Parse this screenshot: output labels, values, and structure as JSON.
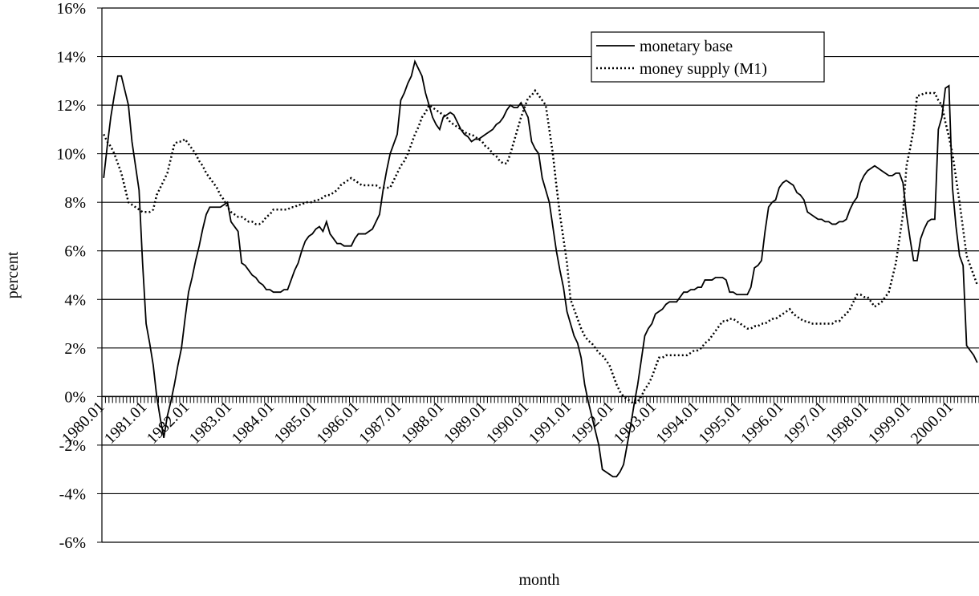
{
  "chart_data": {
    "type": "line",
    "x_label": "month",
    "y_label": "percent",
    "categories": [
      "1980.01",
      null,
      null,
      null,
      null,
      null,
      null,
      null,
      null,
      null,
      null,
      null,
      "1981.01",
      null,
      null,
      null,
      null,
      null,
      null,
      null,
      null,
      null,
      null,
      null,
      "1982.01",
      null,
      null,
      null,
      null,
      null,
      null,
      null,
      null,
      null,
      null,
      null,
      "1983.01",
      null,
      null,
      null,
      null,
      null,
      null,
      null,
      null,
      null,
      null,
      null,
      "1984.01",
      null,
      null,
      null,
      null,
      null,
      null,
      null,
      null,
      null,
      null,
      null,
      "1985.01",
      null,
      null,
      null,
      null,
      null,
      null,
      null,
      null,
      null,
      null,
      null,
      "1986.01",
      null,
      null,
      null,
      null,
      null,
      null,
      null,
      null,
      null,
      null,
      null,
      "1987.01",
      null,
      null,
      null,
      null,
      null,
      null,
      null,
      null,
      null,
      null,
      null,
      "1988.01",
      null,
      null,
      null,
      null,
      null,
      null,
      null,
      null,
      null,
      null,
      null,
      "1989.01",
      null,
      null,
      null,
      null,
      null,
      null,
      null,
      null,
      null,
      null,
      null,
      "1990.01",
      null,
      null,
      null,
      null,
      null,
      null,
      null,
      null,
      null,
      null,
      null,
      "1991.01",
      null,
      null,
      null,
      null,
      null,
      null,
      null,
      null,
      null,
      null,
      null,
      "1992.01",
      null,
      null,
      null,
      null,
      null,
      null,
      null,
      null,
      null,
      null,
      null,
      "1993.01",
      null,
      null,
      null,
      null,
      null,
      null,
      null,
      null,
      null,
      null,
      null,
      "1994.01",
      null,
      null,
      null,
      null,
      null,
      null,
      null,
      null,
      null,
      null,
      null,
      "1995.01",
      null,
      null,
      null,
      null,
      null,
      null,
      null,
      null,
      null,
      null,
      null,
      "1996.01",
      null,
      null,
      null,
      null,
      null,
      null,
      null,
      null,
      null,
      null,
      null,
      "1997.01",
      null,
      null,
      null,
      null,
      null,
      null,
      null,
      null,
      null,
      null,
      null,
      "1998.01",
      null,
      null,
      null,
      null,
      null,
      null,
      null,
      null,
      null,
      null,
      null,
      "1999.01",
      null,
      null,
      null,
      null,
      null,
      null,
      null,
      null,
      null,
      null,
      null,
      "2000.01",
      null,
      null,
      null,
      null,
      null,
      null,
      null
    ],
    "series": [
      {
        "name": "monetary base",
        "color": "#000000",
        "style": "solid",
        "values": [
          9.0,
          10.3,
          11.5,
          12.4,
          13.2,
          13.2,
          12.6,
          12.0,
          10.5,
          9.5,
          8.5,
          5.5,
          3.0,
          2.2,
          1.3,
          0.0,
          -0.9,
          -1.7,
          -0.8,
          -0.2,
          0.5,
          1.3,
          2.0,
          3.2,
          4.3,
          4.9,
          5.6,
          6.2,
          6.9,
          7.5,
          7.8,
          7.8,
          7.8,
          7.8,
          7.9,
          8.0,
          7.2,
          7.0,
          6.8,
          5.5,
          5.4,
          5.2,
          5.0,
          4.9,
          4.7,
          4.6,
          4.4,
          4.4,
          4.3,
          4.3,
          4.3,
          4.4,
          4.4,
          4.8,
          5.2,
          5.5,
          6.0,
          6.4,
          6.6,
          6.7,
          6.9,
          7.0,
          6.8,
          7.2,
          6.7,
          6.5,
          6.3,
          6.3,
          6.2,
          6.2,
          6.2,
          6.5,
          6.7,
          6.7,
          6.7,
          6.8,
          6.9,
          7.2,
          7.5,
          8.5,
          9.3,
          10.0,
          10.4,
          10.8,
          12.2,
          12.5,
          12.9,
          13.2,
          13.8,
          13.5,
          13.2,
          12.5,
          12.0,
          11.5,
          11.2,
          11.0,
          11.5,
          11.6,
          11.7,
          11.6,
          11.3,
          11.0,
          10.8,
          10.7,
          10.5,
          10.6,
          10.6,
          10.7,
          10.8,
          10.9,
          11.0,
          11.2,
          11.3,
          11.5,
          11.8,
          12.0,
          11.9,
          11.9,
          12.1,
          11.8,
          11.5,
          10.5,
          10.2,
          10.0,
          9.0,
          8.5,
          8.0,
          7.0,
          6.0,
          5.2,
          4.5,
          3.5,
          3.0,
          2.5,
          2.2,
          1.6,
          0.5,
          -0.2,
          -0.8,
          -1.4,
          -2.0,
          -3.0,
          -3.1,
          -3.2,
          -3.3,
          -3.3,
          -3.1,
          -2.8,
          -2.0,
          -1.2,
          -0.3,
          0.5,
          1.5,
          2.5,
          2.8,
          3.0,
          3.4,
          3.5,
          3.6,
          3.8,
          3.9,
          3.9,
          3.9,
          4.1,
          4.3,
          4.3,
          4.4,
          4.4,
          4.5,
          4.5,
          4.8,
          4.8,
          4.8,
          4.9,
          4.9,
          4.9,
          4.8,
          4.3,
          4.3,
          4.2,
          4.2,
          4.2,
          4.2,
          4.5,
          5.3,
          5.4,
          5.6,
          6.8,
          7.8,
          8.0,
          8.1,
          8.6,
          8.8,
          8.9,
          8.8,
          8.7,
          8.4,
          8.3,
          8.1,
          7.6,
          7.5,
          7.4,
          7.3,
          7.3,
          7.2,
          7.2,
          7.1,
          7.1,
          7.2,
          7.2,
          7.3,
          7.7,
          8.0,
          8.2,
          8.8,
          9.1,
          9.3,
          9.4,
          9.5,
          9.4,
          9.3,
          9.2,
          9.1,
          9.1,
          9.2,
          9.2,
          8.8,
          7.5,
          6.5,
          5.6,
          5.6,
          6.5,
          6.9,
          7.2,
          7.3,
          7.3,
          11.0,
          11.5,
          12.7,
          12.8,
          8.6,
          7.0,
          5.8,
          5.4,
          2.1,
          1.9,
          1.7,
          1.4
        ]
      },
      {
        "name": "money supply (M1)",
        "color": "#000000",
        "style": "dotted",
        "values": [
          10.8,
          10.5,
          10.3,
          10.0,
          9.6,
          9.2,
          8.6,
          8.0,
          7.9,
          7.8,
          7.7,
          7.6,
          7.6,
          7.6,
          7.7,
          8.3,
          8.6,
          8.9,
          9.2,
          9.8,
          10.4,
          10.5,
          10.5,
          10.6,
          10.4,
          10.2,
          10.0,
          9.7,
          9.5,
          9.2,
          9.0,
          8.8,
          8.6,
          8.3,
          8.1,
          7.8,
          7.6,
          7.5,
          7.4,
          7.4,
          7.3,
          7.2,
          7.2,
          7.1,
          7.1,
          7.2,
          7.4,
          7.5,
          7.7,
          7.7,
          7.7,
          7.7,
          7.7,
          7.8,
          7.8,
          7.9,
          7.9,
          8.0,
          8.0,
          8.0,
          8.1,
          8.1,
          8.2,
          8.3,
          8.3,
          8.4,
          8.5,
          8.7,
          8.8,
          8.9,
          9.0,
          8.9,
          8.8,
          8.7,
          8.7,
          8.7,
          8.7,
          8.7,
          8.6,
          8.6,
          8.6,
          8.6,
          8.9,
          9.2,
          9.5,
          9.7,
          10.0,
          10.4,
          10.8,
          11.1,
          11.5,
          11.7,
          12.0,
          11.9,
          11.8,
          11.7,
          11.6,
          11.5,
          11.3,
          11.2,
          11.1,
          11.0,
          10.9,
          10.8,
          10.8,
          10.7,
          10.6,
          10.5,
          10.3,
          10.2,
          10.0,
          9.9,
          9.7,
          9.6,
          9.6,
          10.0,
          10.5,
          11.0,
          11.5,
          11.9,
          12.3,
          12.4,
          12.6,
          12.4,
          12.2,
          12.0,
          11.0,
          10.0,
          8.7,
          7.5,
          6.5,
          5.5,
          4.0,
          3.6,
          3.2,
          2.8,
          2.5,
          2.3,
          2.2,
          2.0,
          1.8,
          1.7,
          1.5,
          1.3,
          0.9,
          0.5,
          0.2,
          0.0,
          -0.1,
          -0.2,
          -0.3,
          -0.2,
          0.0,
          0.3,
          0.5,
          0.8,
          1.2,
          1.6,
          1.6,
          1.7,
          1.7,
          1.7,
          1.7,
          1.7,
          1.7,
          1.7,
          1.8,
          1.9,
          1.9,
          2.0,
          2.2,
          2.3,
          2.5,
          2.7,
          2.9,
          3.1,
          3.1,
          3.2,
          3.2,
          3.1,
          3.0,
          2.9,
          2.8,
          2.8,
          2.9,
          2.9,
          3.0,
          3.0,
          3.1,
          3.2,
          3.2,
          3.3,
          3.4,
          3.5,
          3.6,
          3.4,
          3.3,
          3.2,
          3.1,
          3.1,
          3.0,
          3.0,
          3.0,
          3.0,
          3.0,
          3.0,
          3.0,
          3.1,
          3.1,
          3.3,
          3.4,
          3.6,
          3.9,
          4.2,
          4.2,
          4.1,
          4.1,
          3.9,
          3.7,
          3.8,
          3.9,
          4.1,
          4.3,
          4.9,
          5.5,
          6.5,
          7.5,
          9.5,
          10.2,
          11.0,
          12.4,
          12.4,
          12.5,
          12.5,
          12.5,
          12.5,
          12.2,
          12.0,
          11.3,
          10.7,
          10.0,
          9.0,
          8.0,
          6.9,
          5.8,
          5.4,
          5.0,
          4.6
        ]
      }
    ],
    "ylim": [
      -6,
      16
    ],
    "yticks": [
      {
        "value": -6,
        "label": "-6%"
      },
      {
        "value": -4,
        "label": "-4%"
      },
      {
        "value": -2,
        "label": "-2%"
      },
      {
        "value": 0,
        "label": "0%"
      },
      {
        "value": 2,
        "label": "2%"
      },
      {
        "value": 4,
        "label": "4%"
      },
      {
        "value": 6,
        "label": "6%"
      },
      {
        "value": 8,
        "label": "8%"
      },
      {
        "value": 10,
        "label": "10%"
      },
      {
        "value": 12,
        "label": "12%"
      },
      {
        "value": 14,
        "label": "14%"
      },
      {
        "value": 16,
        "label": "16%"
      }
    ],
    "grid": true,
    "legend": "top-right"
  }
}
